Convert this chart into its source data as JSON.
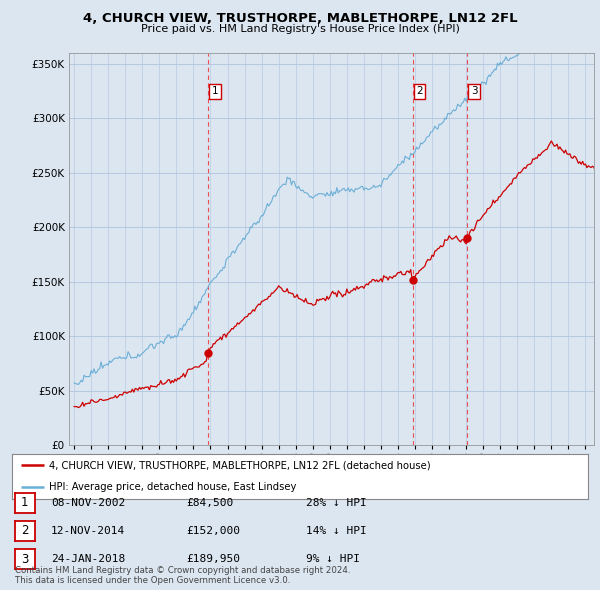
{
  "title": "4, CHURCH VIEW, TRUSTHORPE, MABLETHORPE, LN12 2FL",
  "subtitle": "Price paid vs. HM Land Registry's House Price Index (HPI)",
  "ylim": [
    0,
    360000
  ],
  "yticks": [
    0,
    50000,
    100000,
    150000,
    200000,
    250000,
    300000,
    350000
  ],
  "hpi_color": "#6baed6",
  "price_color": "#cc0000",
  "vline_color": "#ee3333",
  "sale_year_floats": [
    2002.86,
    2014.87,
    2018.07
  ],
  "sale_prices": [
    84500,
    152000,
    189950
  ],
  "sale_labels": [
    "1",
    "2",
    "3"
  ],
  "legend_price_label": "4, CHURCH VIEW, TRUSTHORPE, MABLETHORPE, LN12 2FL (detached house)",
  "legend_hpi_label": "HPI: Average price, detached house, East Lindsey",
  "table_rows": [
    [
      "1",
      "08-NOV-2002",
      "£84,500",
      "28% ↓ HPI"
    ],
    [
      "2",
      "12-NOV-2014",
      "£152,000",
      "14% ↓ HPI"
    ],
    [
      "3",
      "24-JAN-2018",
      "£189,950",
      "9% ↓ HPI"
    ]
  ],
  "footer": "Contains HM Land Registry data © Crown copyright and database right 2024.\nThis data is licensed under the Open Government Licence v3.0.",
  "background_color": "#dce6f1",
  "plot_background": "#dce6f1",
  "grid_color": "#b0c4de",
  "xlim_min": 1994.7,
  "xlim_max": 2025.5
}
